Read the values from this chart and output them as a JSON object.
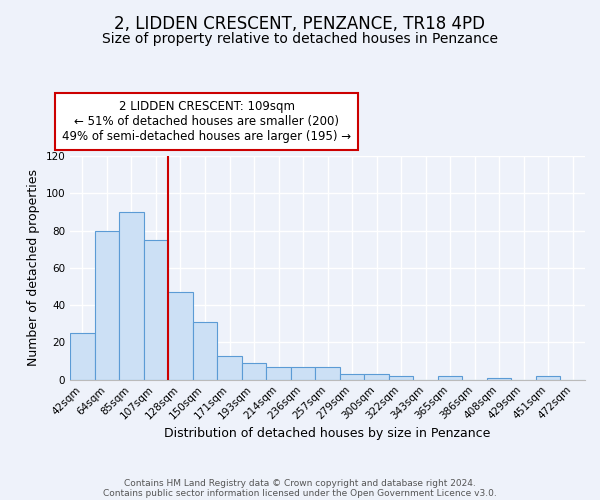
{
  "title": "2, LIDDEN CRESCENT, PENZANCE, TR18 4PD",
  "subtitle": "Size of property relative to detached houses in Penzance",
  "xlabel": "Distribution of detached houses by size in Penzance",
  "ylabel": "Number of detached properties",
  "bin_labels": [
    "42sqm",
    "64sqm",
    "85sqm",
    "107sqm",
    "128sqm",
    "150sqm",
    "171sqm",
    "193sqm",
    "214sqm",
    "236sqm",
    "257sqm",
    "279sqm",
    "300sqm",
    "322sqm",
    "343sqm",
    "365sqm",
    "386sqm",
    "408sqm",
    "429sqm",
    "451sqm",
    "472sqm"
  ],
  "bar_heights": [
    25,
    80,
    90,
    75,
    47,
    31,
    13,
    9,
    7,
    7,
    7,
    3,
    3,
    2,
    0,
    2,
    0,
    1,
    0,
    2,
    0
  ],
  "bar_color": "#cce0f5",
  "bar_edge_color": "#5b9bd5",
  "property_label": "2 LIDDEN CRESCENT: 109sqm",
  "annotation_line1": "← 51% of detached houses are smaller (200)",
  "annotation_line2": "49% of semi-detached houses are larger (195) →",
  "annotation_box_color": "#ffffff",
  "annotation_box_edge_color": "#cc0000",
  "marker_line_color": "#cc0000",
  "ylim": [
    0,
    120
  ],
  "yticks": [
    0,
    20,
    40,
    60,
    80,
    100,
    120
  ],
  "footnote1": "Contains HM Land Registry data © Crown copyright and database right 2024.",
  "footnote2": "Contains public sector information licensed under the Open Government Licence v3.0.",
  "background_color": "#eef2fa",
  "grid_color": "#ffffff",
  "title_fontsize": 12,
  "subtitle_fontsize": 10,
  "axis_label_fontsize": 9,
  "tick_fontsize": 7.5,
  "annotation_fontsize": 8.5,
  "footnote_fontsize": 6.5,
  "marker_bar_index": 3
}
